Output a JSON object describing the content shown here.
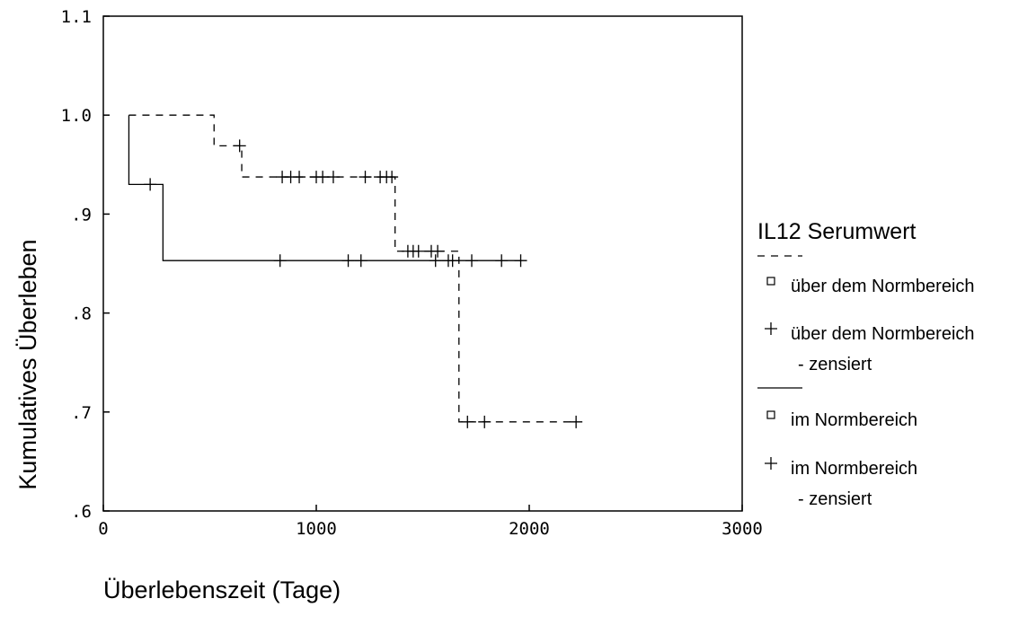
{
  "chart_data": {
    "type": "line",
    "subtype": "kaplan-meier step",
    "xlabel": "Überlebenszeit  (Tage)",
    "ylabel": "Kumulatives Überleben",
    "xlim": [
      0,
      3000
    ],
    "ylim": [
      0.6,
      1.1
    ],
    "x_ticks": [
      {
        "value": 0,
        "label": "0"
      },
      {
        "value": 1000,
        "label": "1000"
      },
      {
        "value": 2000,
        "label": "2000"
      },
      {
        "value": 3000,
        "label": "3000"
      }
    ],
    "y_ticks": [
      {
        "value": 0.6,
        "label": ".6"
      },
      {
        "value": 0.7,
        "label": ".7"
      },
      {
        "value": 0.8,
        "label": ".8"
      },
      {
        "value": 0.9,
        "label": ".9"
      },
      {
        "value": 1.0,
        "label": "1.0"
      },
      {
        "value": 1.1,
        "label": "1.1"
      }
    ],
    "grid": false,
    "legend_position": "right",
    "legend": {
      "title": "IL12  Serumwert",
      "groups": [
        {
          "line_style": "dashed",
          "entries": [
            {
              "marker": "square",
              "label_lines": [
                "über dem Normbereich"
              ]
            },
            {
              "marker": "plus",
              "label_lines": [
                "über dem Normbereich",
                "- zensiert"
              ]
            }
          ]
        },
        {
          "line_style": "solid",
          "entries": [
            {
              "marker": "square",
              "label_lines": [
                "im Normbereich"
              ]
            },
            {
              "marker": "plus",
              "label_lines": [
                "im Normbereich",
                "- zensiert"
              ]
            }
          ]
        }
      ]
    },
    "series": [
      {
        "name": "über dem Normbereich",
        "line_style": "dashed",
        "steps": [
          [
            120,
            1.0
          ],
          [
            520,
            0.969
          ],
          [
            650,
            0.9375
          ],
          [
            1370,
            0.8625
          ],
          [
            1670,
            0.69
          ],
          [
            2220,
            0.69
          ]
        ],
        "censored": [
          {
            "x": 640,
            "y": 0.969
          },
          {
            "x": 840,
            "y": 0.9375
          },
          {
            "x": 880,
            "y": 0.9375
          },
          {
            "x": 920,
            "y": 0.9375
          },
          {
            "x": 1000,
            "y": 0.9375
          },
          {
            "x": 1030,
            "y": 0.9375
          },
          {
            "x": 1080,
            "y": 0.9375
          },
          {
            "x": 1230,
            "y": 0.9375
          },
          {
            "x": 1300,
            "y": 0.9375
          },
          {
            "x": 1330,
            "y": 0.9375
          },
          {
            "x": 1355,
            "y": 0.9375
          },
          {
            "x": 1430,
            "y": 0.8625
          },
          {
            "x": 1455,
            "y": 0.8625
          },
          {
            "x": 1480,
            "y": 0.8625
          },
          {
            "x": 1540,
            "y": 0.8625
          },
          {
            "x": 1570,
            "y": 0.8625
          },
          {
            "x": 1710,
            "y": 0.69
          },
          {
            "x": 1790,
            "y": 0.69
          },
          {
            "x": 2220,
            "y": 0.69
          }
        ]
      },
      {
        "name": "im Normbereich",
        "line_style": "solid",
        "steps": [
          [
            120,
            1.0
          ],
          [
            120,
            0.93
          ],
          [
            280,
            0.853
          ],
          [
            1960,
            0.853
          ]
        ],
        "censored": [
          {
            "x": 220,
            "y": 0.93
          },
          {
            "x": 830,
            "y": 0.853
          },
          {
            "x": 1150,
            "y": 0.853
          },
          {
            "x": 1210,
            "y": 0.853
          },
          {
            "x": 1560,
            "y": 0.853
          },
          {
            "x": 1620,
            "y": 0.853
          },
          {
            "x": 1640,
            "y": 0.853
          },
          {
            "x": 1730,
            "y": 0.853
          },
          {
            "x": 1870,
            "y": 0.853
          },
          {
            "x": 1960,
            "y": 0.853
          }
        ]
      }
    ]
  }
}
